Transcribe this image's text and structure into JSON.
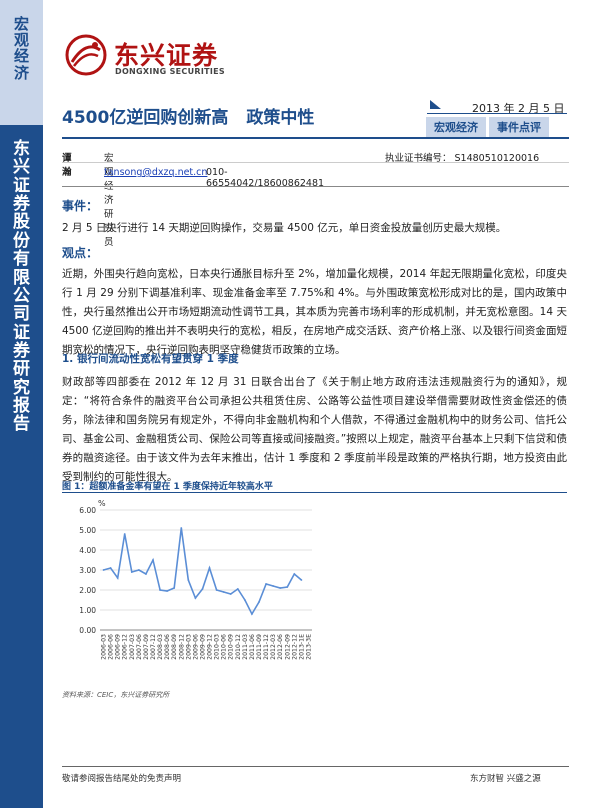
{
  "sidebar": {
    "category": "宏观经济",
    "company": "东兴证券股份有限公司证券研究报告"
  },
  "header": {
    "brand_cn": "东兴证券",
    "brand_en": "DONGXING SECURITIES",
    "title_part1": "4500亿逆回购创新高",
    "title_part2": "政策中性",
    "date": "2013 年 2 月 5 日",
    "tags": [
      "宏观经济",
      "事件点评"
    ]
  },
  "analyst": {
    "name": "谭瀚",
    "org": "宏观经济研究员",
    "email": "tansong@dxzq.net.cn",
    "phone": "010-66554042/18600862481",
    "cert": "执业证书编号： S1480510120016"
  },
  "body": {
    "event_heading": "事件：",
    "event_text": "2 月 5 日央行进行 14 天期逆回购操作，交易量 4500 亿元，单日资金投放量创历史最大规模。",
    "view_heading": "观点：",
    "view_text": "近期，外围央行趋向宽松，日本央行通胀目标升至 2%，增加量化规模，2014 年起无限期量化宽松，印度央行 1 月 29 分别下调基准利率、现金准备金率至 7.75%和 4%。与外围政策宽松形成对比的是，国内政策中性，央行虽然推出公开市场短期流动性调节工具，其本质为完善市场利率的形成机制，并无宽松意图。14 天 4500 亿逆回购的推出并不表明央行的宽松，相反，在房地产成交活跃、资产价格上涨、以及银行间资金面短期宽松的情况下，央行逆回购表明坚守稳健货币政策的立场。",
    "section1_heading": "1. 银行间流动性宽松有望贯穿 1 季度",
    "section1_text": "财政部等四部委在 2012 年 12 月 31 日联合出台了《关于制止地方政府违法违规融资行为的通知》，规定：“将符合条件的融资平台公司承担公共租赁住房、公路等公益性项目建设举借需要财政性资金偿还的债务，除法律和国务院另有规定外，不得向非金融机构和个人借款，不得通过金融机构中的财务公司、信托公司、基金公司、金融租赁公司、保险公司等直接或间接融资。”按照以上规定，融资平台基本上只剩下信贷和债券的融资途径。由于该文件为去年末推出，估计 1 季度和 2 季度前半段是政策的严格执行期，地方投资由此受到制约的可能性很大。"
  },
  "figure": {
    "title": "图 1：超额准备金率有望在 1 季度保持近年较高水平",
    "source": "资料来源：CEIC，东兴证券研究所"
  },
  "chart_data": {
    "type": "line",
    "title": "",
    "xlabel": "",
    "ylabel": "%",
    "ylim": [
      0,
      6
    ],
    "yticks": [
      "0.00",
      "1.00",
      "2.00",
      "3.00",
      "4.00",
      "5.00",
      "6.00"
    ],
    "grid": true,
    "legend": "none",
    "color": "#5b8ed6",
    "categories": [
      "2006-03",
      "2006-06",
      "2006-09",
      "2006-12",
      "2007-03",
      "2007-06",
      "2007-09",
      "2007-12",
      "2008-03",
      "2008-06",
      "2008-09",
      "2008-12",
      "2009-03",
      "2009-06",
      "2009-09",
      "2009-12",
      "2010-03",
      "2010-06",
      "2010-09",
      "2010-12",
      "2011-03",
      "2011-06",
      "2011-09",
      "2011-12",
      "2012-03",
      "2012-06",
      "2012-09",
      "2012-12",
      "2013-1E",
      "2013-3E"
    ],
    "x_tick_labels": [
      "2006-03",
      "2006-06",
      "2006-09",
      "2006-12",
      "2007-03",
      "2007-06",
      "2007-09",
      "2007-12",
      "2008-03",
      "2008-06",
      "2008-09",
      "2008-12",
      "2009-03",
      "2009-06",
      "2009-09",
      "2009-12",
      "2010-03",
      "2010-06",
      "2010-09",
      "2010-12",
      "2011-03",
      "2011-06",
      "2011-09",
      "2011-12",
      "2012-03",
      "2012-06",
      "2012-09",
      "2012-12",
      "2013-1E",
      "2013-3E"
    ],
    "values": [
      3.0,
      3.1,
      2.6,
      4.8,
      2.9,
      3.0,
      2.8,
      3.5,
      2.0,
      1.95,
      2.1,
      5.1,
      2.5,
      1.6,
      2.05,
      3.1,
      2.0,
      1.9,
      1.8,
      2.05,
      1.5,
      0.8,
      1.4,
      2.3,
      2.2,
      2.1,
      2.15,
      2.8,
      2.5,
      null
    ]
  },
  "footer": {
    "disclaimer": "敬请参阅报告结尾处的免责声明",
    "slogan": "东方财智  兴盛之源"
  }
}
